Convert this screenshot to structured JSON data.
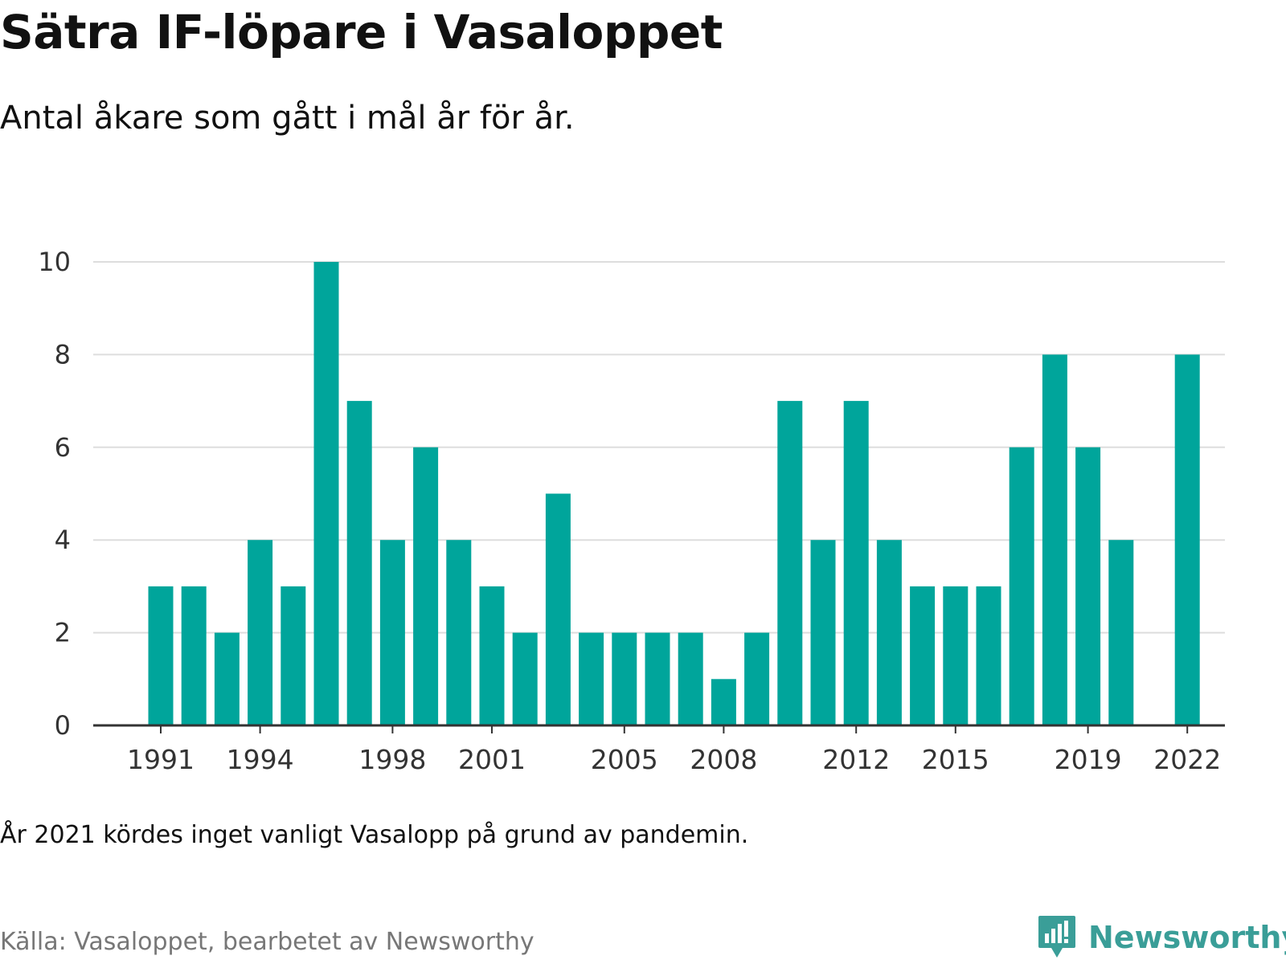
{
  "header": {
    "title": "Sätra IF-löpare i Vasaloppet",
    "subtitle": "Antal åkare som gått i mål år för år."
  },
  "footer": {
    "note": "År 2021 kördes inget vanligt Vasalopp på grund av pandemin.",
    "source": "Källa: Vasaloppet, bearbetet av Newsworthy",
    "logo_text": "Newsworthy"
  },
  "colors": {
    "bar": "#00a59b",
    "grid": "#dddddd",
    "axis": "#333333",
    "logo": "#3a9e98"
  },
  "icons": {
    "logo": "newsworthy-logo-icon"
  },
  "chart_data": {
    "type": "bar",
    "title": "Sätra IF-löpare i Vasaloppet",
    "subtitle": "Antal åkare som gått i mål år för år.",
    "categories": [
      1991,
      1992,
      1993,
      1994,
      1995,
      1996,
      1997,
      1998,
      1999,
      2000,
      2001,
      2002,
      2003,
      2004,
      2005,
      2006,
      2007,
      2008,
      2009,
      2010,
      2011,
      2012,
      2013,
      2014,
      2015,
      2016,
      2017,
      2018,
      2019,
      2020,
      2021,
      2022
    ],
    "values": [
      3,
      3,
      2,
      4,
      3,
      10,
      7,
      4,
      6,
      4,
      3,
      2,
      5,
      2,
      2,
      2,
      2,
      1,
      2,
      7,
      4,
      7,
      4,
      3,
      3,
      3,
      6,
      8,
      6,
      4,
      null,
      8
    ],
    "x_tick_labels": [
      "1991",
      "1994",
      "1998",
      "2001",
      "2005",
      "2008",
      "2012",
      "2015",
      "2019",
      "2022"
    ],
    "y_ticks": [
      0,
      2,
      4,
      6,
      8,
      10
    ],
    "ylim": [
      0,
      10
    ],
    "xlabel": "",
    "ylabel": "",
    "grid": true,
    "legend": "none"
  }
}
